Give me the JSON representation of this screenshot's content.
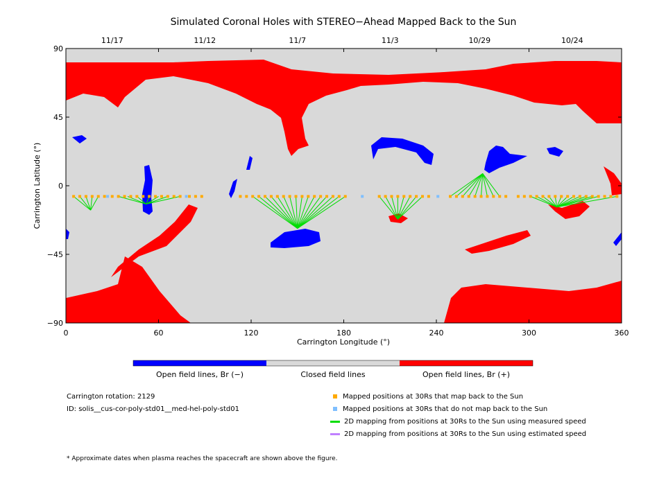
{
  "chart_data": {
    "type": "map",
    "title": "Simulated Coronal Holes with STEREO−Ahead Mapped Back to the Sun",
    "xlabel": "Carrington Longitude (°)",
    "ylabel": "Carrington Latitude (°)",
    "xlim": [
      0,
      360
    ],
    "ylim": [
      -90,
      90
    ],
    "x_ticks": [
      0,
      60,
      120,
      180,
      240,
      300,
      360
    ],
    "y_ticks": [
      90,
      45,
      0,
      -45,
      -90
    ],
    "top_axis": {
      "dates": [
        {
          "label": "11/17",
          "lon": 30
        },
        {
          "label": "11/12",
          "lon": 90
        },
        {
          "label": "11/7",
          "lon": 150
        },
        {
          "label": "11/3",
          "lon": 210
        },
        {
          "label": "10/29",
          "lon": 268
        },
        {
          "label": "10/24",
          "lon": 328
        }
      ]
    },
    "colorbar": [
      {
        "label": "Open field lines, Br (−)",
        "color": "#0000ff"
      },
      {
        "label": "Closed field lines",
        "color": "#d9d9d9"
      },
      {
        "label": "Open field lines, Br (+)",
        "color": "#ff0000"
      }
    ],
    "region_colors": {
      "background": "#d9d9d9",
      "positive": "#ff0000",
      "negative": "#0000ff"
    },
    "mapped_track_lat": -7,
    "mapped_points": {
      "map_back_color": "#ffaa00",
      "no_map_color": "#7fbfff",
      "orange_lon": [
        5,
        9,
        13,
        17,
        21,
        25,
        30,
        34,
        38,
        42,
        46,
        50,
        54,
        58,
        62,
        66,
        70,
        74,
        80,
        84,
        88,
        113,
        117,
        121,
        125,
        129,
        133,
        137,
        141,
        145,
        149,
        153,
        157,
        161,
        165,
        169,
        173,
        177,
        181,
        203,
        207,
        211,
        215,
        219,
        223,
        227,
        231,
        235,
        249,
        253,
        257,
        261,
        265,
        269,
        273,
        277,
        281,
        285,
        293,
        297,
        301,
        305,
        309,
        313,
        317,
        321,
        325,
        329,
        333,
        337,
        341,
        345,
        349,
        353,
        357
      ],
      "blue_lon": [
        27,
        78,
        192,
        241
      ]
    },
    "mapping_lines": {
      "measured_color": "#00dd00",
      "estimated_color": "#c080ff",
      "groups": [
        {
          "target": [
            16,
            -16
          ],
          "sources": [
            5,
            9,
            13,
            17,
            21
          ]
        },
        {
          "target": [
            52,
            -12
          ],
          "sources": [
            34,
            40,
            46,
            54,
            60,
            66,
            74
          ]
        },
        {
          "target": [
            150,
            -28
          ],
          "sources": [
            121,
            125,
            129,
            133,
            137,
            141,
            145,
            149,
            153,
            157,
            161,
            165,
            169,
            173,
            177,
            181
          ]
        },
        {
          "target": [
            215,
            -22
          ],
          "sources": [
            203,
            207,
            211,
            215,
            219,
            223,
            227,
            231
          ]
        },
        {
          "target": [
            270,
            8
          ],
          "sources": [
            249,
            253,
            257,
            261,
            265,
            269,
            273,
            277,
            281
          ]
        },
        {
          "target": [
            318,
            -14
          ],
          "sources": [
            301,
            305,
            309,
            313,
            317,
            321,
            325,
            329,
            333,
            337,
            341,
            345,
            357
          ]
        }
      ]
    }
  },
  "info": {
    "rotation": "Carrington rotation: 2129",
    "id": "ID: solis__cus-cor-poly-std01__med-hel-poly-std01"
  },
  "legend": {
    "orange_points": "Mapped positions at 30Rs that map back to the Sun",
    "blue_points": "Mapped positions at 30Rs that do not map back to the Sun",
    "measured_line": "2D mapping from positions at 30Rs to the Sun using measured speed",
    "estimated_line": "2D mapping from positions at 30Rs to the Sun using estimated speed"
  },
  "footnote": "* Approximate dates when plasma reaches the spacecraft are shown above the figure."
}
